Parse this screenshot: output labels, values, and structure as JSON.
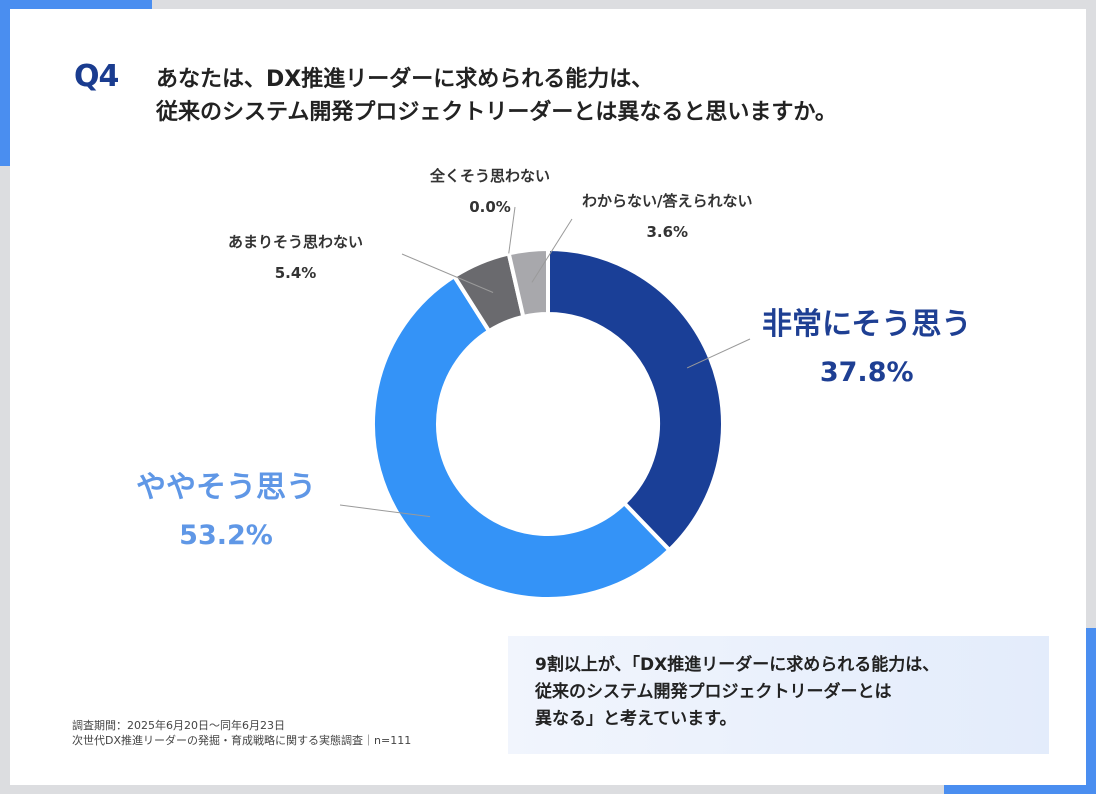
{
  "question": {
    "number": "Q4",
    "lines": [
      "あなたは、DX推進リーダーに求められる能力は、",
      "従来のシステム開発プロジェクトリーダーとは異なると思いますか。"
    ]
  },
  "chart_data": {
    "type": "pie",
    "donut": true,
    "categories": [
      "非常にそう思う",
      "ややそう思う",
      "あまりそう思わない",
      "全くそう思わない",
      "わからない/答えられない"
    ],
    "values": [
      37.8,
      53.2,
      5.4,
      0.0,
      3.6
    ],
    "value_labels": [
      "37.8%",
      "53.2%",
      "5.4%",
      "0.0%",
      "3.6%"
    ],
    "colors": [
      "#1a3f97",
      "#3493f7",
      "#6a6a6e",
      "#8e8e92",
      "#a8a8ac"
    ],
    "start": "12 o'clock",
    "direction": "clockwise"
  },
  "note": {
    "lines": [
      "9割以上が、「DX推進リーダーに求められる能力は、",
      "従来のシステム開発プロジェクトリーダーとは",
      "異なる」と考えています。"
    ]
  },
  "footer": {
    "lines": [
      "調査期間：2025年6月20日～同年6月23日",
      "次世代DX推進リーダーの発掘・育成戦略に関する実態調査｜n=111"
    ]
  }
}
